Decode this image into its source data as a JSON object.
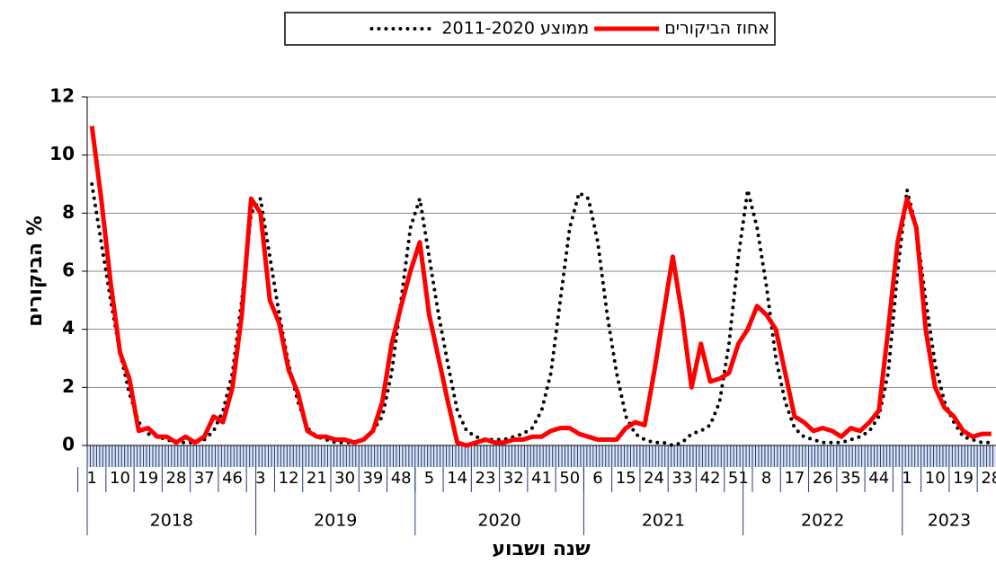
{
  "chart_data": {
    "type": "line",
    "y_label": "% הביקורים",
    "x_label": "שנה ושבוע",
    "categories": [
      "1",
      null,
      null,
      "10",
      null,
      null,
      "19",
      null,
      null,
      "28",
      null,
      null,
      "37",
      null,
      null,
      "46",
      null,
      null,
      "3",
      null,
      null,
      "12",
      null,
      null,
      "21",
      null,
      null,
      "30",
      null,
      null,
      "39",
      null,
      null,
      "48",
      null,
      null,
      "5",
      null,
      null,
      "14",
      null,
      null,
      "23",
      null,
      null,
      "32",
      null,
      null,
      "41",
      null,
      null,
      "50",
      null,
      null,
      "6",
      null,
      null,
      "15",
      null,
      null,
      "24",
      null,
      null,
      "33",
      null,
      null,
      "42",
      null,
      null,
      "51",
      null,
      null,
      "8",
      null,
      null,
      "17",
      null,
      null,
      "26",
      null,
      null,
      "35",
      null,
      null,
      "44",
      null,
      null,
      "1",
      null,
      null,
      "10",
      null,
      null,
      "19",
      null,
      null,
      "28"
    ],
    "years": [
      "2018",
      "2018",
      "2018",
      "2018",
      "2018",
      "2018",
      "2018",
      "2018",
      "2018",
      "2018",
      "2018",
      "2018",
      "2018",
      "2018",
      "2018",
      "2018",
      "2018",
      "2018",
      "2019",
      "2019",
      "2019",
      "2019",
      "2019",
      "2019",
      "2019",
      "2019",
      "2019",
      "2019",
      "2019",
      "2019",
      "2019",
      "2019",
      "2019",
      "2019",
      "2019",
      "2020",
      "2020",
      "2020",
      "2020",
      "2020",
      "2020",
      "2020",
      "2020",
      "2020",
      "2020",
      "2020",
      "2020",
      "2020",
      "2020",
      "2020",
      "2020",
      "2020",
      "2020",
      "2021",
      "2021",
      "2021",
      "2021",
      "2021",
      "2021",
      "2021",
      "2021",
      "2021",
      "2021",
      "2021",
      "2021",
      "2021",
      "2021",
      "2021",
      "2021",
      "2021",
      "2022",
      "2022",
      "2022",
      "2022",
      "2022",
      "2022",
      "2022",
      "2022",
      "2022",
      "2022",
      "2022",
      "2022",
      "2022",
      "2022",
      "2022",
      "2022",
      "2022",
      "2023",
      "2023",
      "2023",
      "2023",
      "2023",
      "2023",
      "2023",
      "2023",
      "2023",
      "2023"
    ],
    "series": [
      {
        "name": "אחוז הביקורים",
        "color": "#ff0000",
        "style": "solid",
        "values": [
          11.0,
          8.5,
          5.6,
          3.2,
          2.3,
          0.5,
          0.6,
          0.3,
          0.3,
          0.1,
          0.3,
          0.1,
          0.3,
          1.0,
          0.8,
          2.0,
          4.5,
          8.5,
          8.0,
          5.0,
          4.2,
          2.6,
          1.8,
          0.5,
          0.3,
          0.3,
          0.2,
          0.2,
          0.1,
          0.2,
          0.5,
          1.5,
          3.5,
          4.8,
          6.0,
          7.0,
          4.5,
          3.0,
          1.5,
          0.1,
          0.0,
          0.1,
          0.2,
          0.1,
          0.1,
          0.2,
          0.2,
          0.3,
          0.3,
          0.5,
          0.6,
          0.6,
          0.4,
          0.3,
          0.2,
          0.2,
          0.2,
          0.6,
          0.8,
          0.7,
          2.5,
          4.5,
          6.5,
          4.5,
          2.0,
          3.5,
          2.2,
          2.3,
          2.5,
          3.5,
          4.0,
          4.8,
          4.5,
          4.0,
          2.5,
          1.0,
          0.8,
          0.5,
          0.6,
          0.5,
          0.3,
          0.6,
          0.5,
          0.8,
          1.2,
          4.0,
          7.0,
          8.5,
          7.5,
          4.0,
          2.0,
          1.3,
          1.0,
          0.5,
          0.3,
          0.4,
          0.4
        ]
      },
      {
        "name": "ממוצע 2011-2020",
        "color": "#000000",
        "style": "dotted",
        "values": [
          9.0,
          7.0,
          5.0,
          3.2,
          1.8,
          0.8,
          0.4,
          0.3,
          0.2,
          0.1,
          0.1,
          0.1,
          0.2,
          0.5,
          1.2,
          2.5,
          5.0,
          8.0,
          8.5,
          6.5,
          4.5,
          2.8,
          1.5,
          0.6,
          0.3,
          0.2,
          0.1,
          0.1,
          0.1,
          0.2,
          0.5,
          1.0,
          2.5,
          5.0,
          7.5,
          8.5,
          6.5,
          4.5,
          2.8,
          1.2,
          0.5,
          0.3,
          0.2,
          0.2,
          0.2,
          0.3,
          0.4,
          0.6,
          1.2,
          2.5,
          5.0,
          7.5,
          8.7,
          8.5,
          7.0,
          4.5,
          2.5,
          1.0,
          0.4,
          0.2,
          0.1,
          0.1,
          0.0,
          0.1,
          0.4,
          0.5,
          0.7,
          1.5,
          3.5,
          6.5,
          8.8,
          7.5,
          5.5,
          3.0,
          1.5,
          0.6,
          0.3,
          0.2,
          0.1,
          0.1,
          0.1,
          0.2,
          0.3,
          0.5,
          1.0,
          2.5,
          6.0,
          8.8,
          7.5,
          5.0,
          2.8,
          1.5,
          0.8,
          0.3,
          0.2,
          0.1,
          0.1
        ]
      }
    ],
    "ylim": [
      0,
      12
    ],
    "yticks": [
      0,
      2,
      4,
      6,
      8,
      10,
      12
    ],
    "grid": true,
    "legend": "top"
  }
}
